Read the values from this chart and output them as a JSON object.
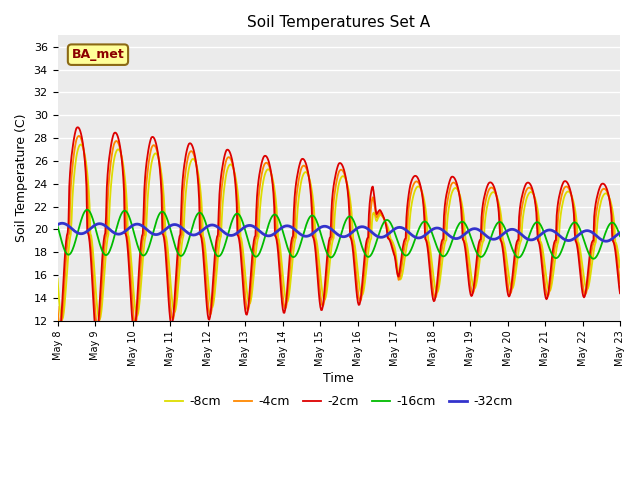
{
  "title": "Soil Temperatures Set A",
  "xlabel": "Time",
  "ylabel": "Soil Temperature (C)",
  "ylim": [
    12,
    37
  ],
  "yticks": [
    12,
    14,
    16,
    18,
    20,
    22,
    24,
    26,
    28,
    30,
    32,
    34,
    36
  ],
  "annotation": "BA_met",
  "legend_labels": [
    "-2cm",
    "-4cm",
    "-8cm",
    "-16cm",
    "-32cm"
  ],
  "legend_colors": [
    "#dd0000",
    "#ff8800",
    "#dddd00",
    "#00bb00",
    "#3333cc"
  ],
  "background_color": "#ebebeb",
  "fig_color": "#ffffff",
  "line_widths": [
    1.3,
    1.3,
    1.3,
    1.3,
    2.0
  ],
  "n_points": 720,
  "n_days": 15
}
